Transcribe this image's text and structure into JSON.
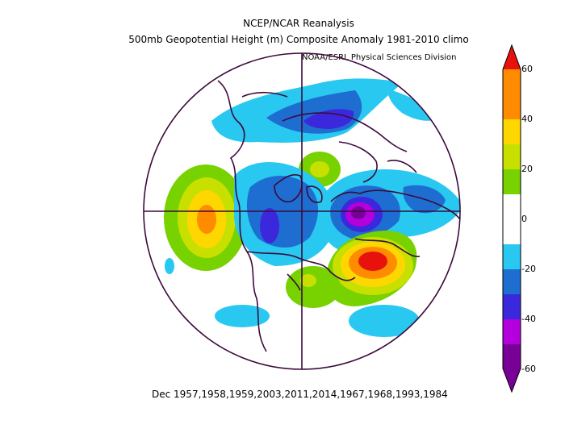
{
  "header": {
    "title": "NCEP/NCAR Reanalysis",
    "subtitle": "500mb Geopotential Height (m) Composite Anomaly 1981-2010 climo",
    "credit": "NOAA/ESRL Physical Sciences Division"
  },
  "footer": {
    "dates": "Dec 1957,1958,1959,2003,2011,2014,1967,1968,1993,1984"
  },
  "colorbar": {
    "labels": [
      "60",
      "40",
      "20",
      "0",
      "-20",
      "-40",
      "-60"
    ],
    "colors": {
      "gt50": "#e8120c",
      "40_50": "#ff8c00",
      "30_40": "#ffd700",
      "20_30": "#c8e000",
      "10_20": "#78d200",
      "neutral": "#ffffff",
      "m10_m20": "#28c8f0",
      "m20_m30": "#1e6ed2",
      "m30_m40": "#3c28dc",
      "m40_m50": "#b400dc",
      "lt_m50": "#780096"
    }
  },
  "map": {
    "projection": "north-polar-stereographic",
    "colors": {
      "coastline": "#3c0a3c",
      "outline": "#3c0a3c"
    }
  }
}
